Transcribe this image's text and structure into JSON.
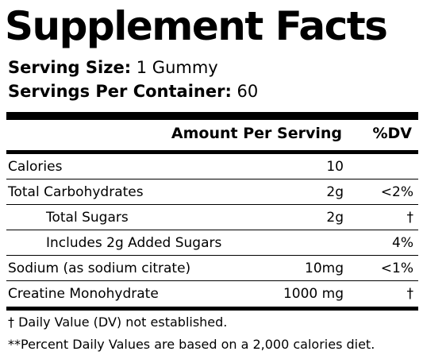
{
  "label": {
    "title": "Supplement Facts",
    "serving_size_label": "Serving Size:",
    "serving_size_value": " 1 Gummy",
    "servings_per_container_label": "Servings Per Container:",
    "servings_per_container_value": " 60"
  },
  "columns": {
    "amount_header": "Amount Per Serving",
    "dv_header": "%DV"
  },
  "rows": [
    {
      "name": "Calories",
      "amount": "10",
      "dv": ""
    },
    {
      "name": "Total Carbohydrates",
      "amount": "2g",
      "dv": "<2%"
    },
    {
      "name": "Total Sugars",
      "amount": "2g",
      "dv": "†"
    },
    {
      "name": "Includes 2g Added Sugars",
      "amount": "",
      "dv": "4%"
    },
    {
      "name": "Sodium (as sodium citrate)",
      "amount": "10mg",
      "dv": "<1%"
    },
    {
      "name": "Creatine Monohydrate",
      "amount": "1000 mg",
      "dv": "†"
    }
  ],
  "footnotes": [
    "† Daily Value (DV) not established.",
    "**Percent Daily Values are based on a 2,000 calories diet."
  ]
}
